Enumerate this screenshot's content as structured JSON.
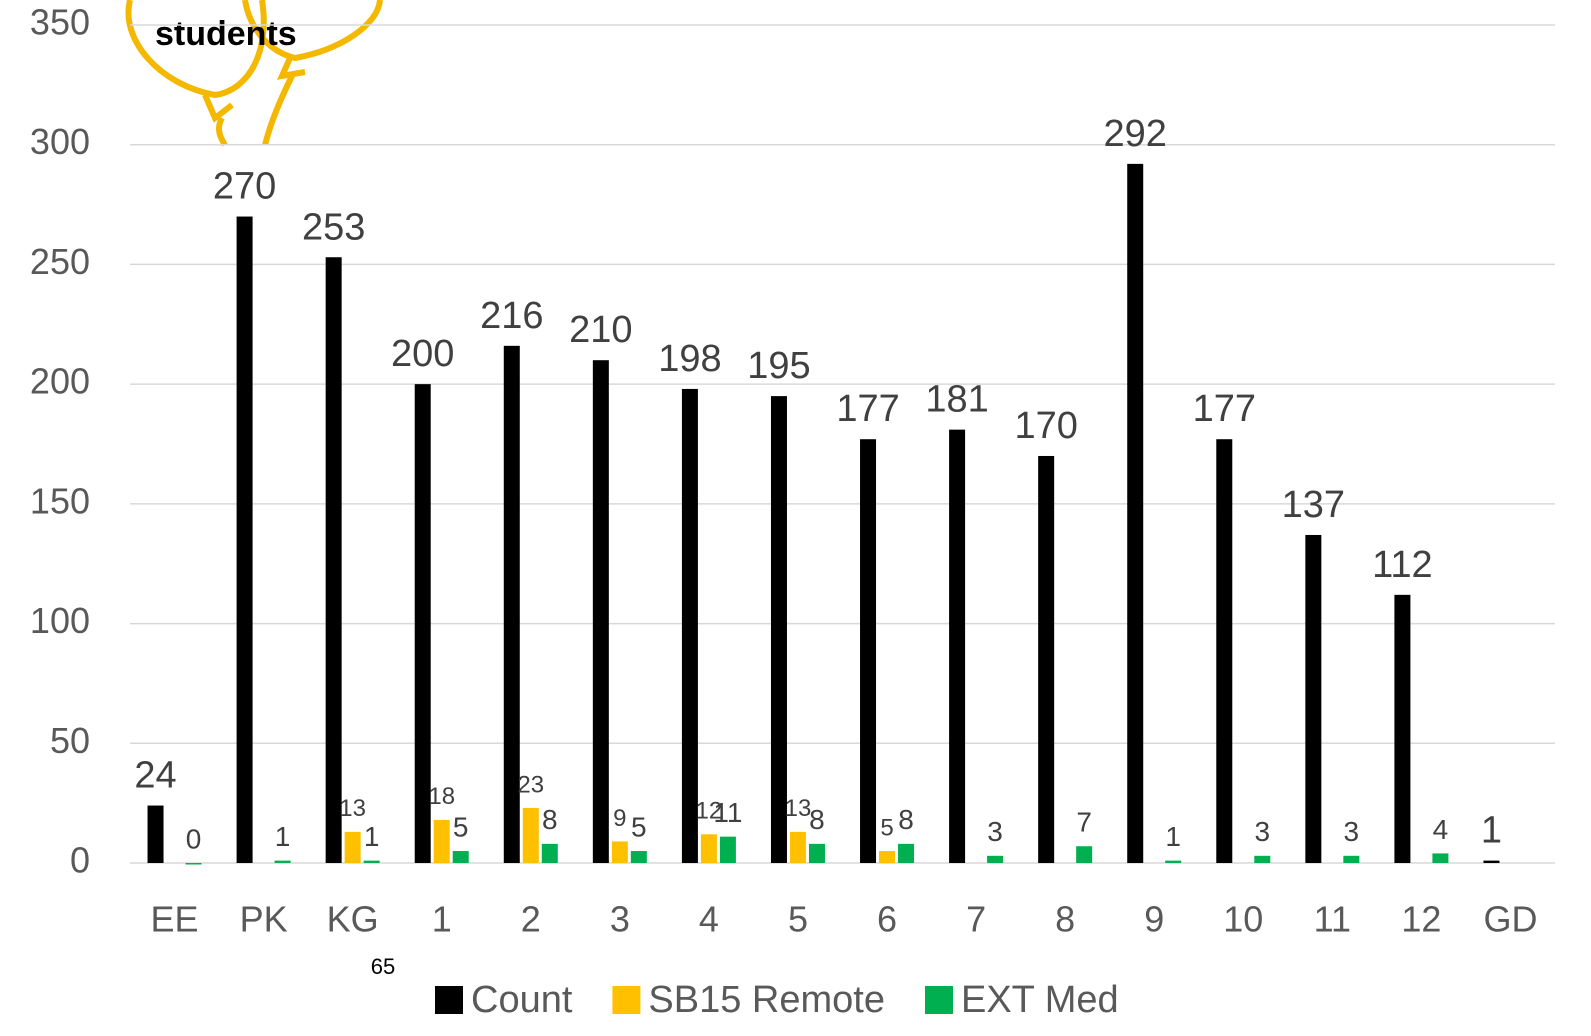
{
  "chart_data": {
    "type": "bar",
    "annotation": "students",
    "page_number": "65",
    "categories": [
      "EE",
      "PK",
      "KG",
      "1",
      "2",
      "3",
      "4",
      "5",
      "6",
      "7",
      "8",
      "9",
      "10",
      "11",
      "12",
      "GD"
    ],
    "series": [
      {
        "name": "Count",
        "color": "#000000",
        "values": [
          24,
          270,
          253,
          200,
          216,
          210,
          198,
          195,
          177,
          181,
          170,
          292,
          177,
          137,
          112,
          1
        ]
      },
      {
        "name": "SB15 Remote",
        "color": "#ffc000",
        "values": [
          null,
          null,
          13,
          18,
          23,
          9,
          12,
          13,
          5,
          null,
          null,
          null,
          null,
          null,
          null,
          null
        ]
      },
      {
        "name": "EXT Med",
        "color": "#00b050",
        "values": [
          0,
          1,
          1,
          5,
          8,
          5,
          11,
          8,
          8,
          3,
          7,
          1,
          3,
          3,
          4,
          null
        ]
      }
    ],
    "ylim": [
      0,
      350
    ],
    "yticks": [
      0,
      50,
      100,
      150,
      200,
      250,
      300,
      350
    ],
    "grid": true,
    "legend": "bottom"
  }
}
